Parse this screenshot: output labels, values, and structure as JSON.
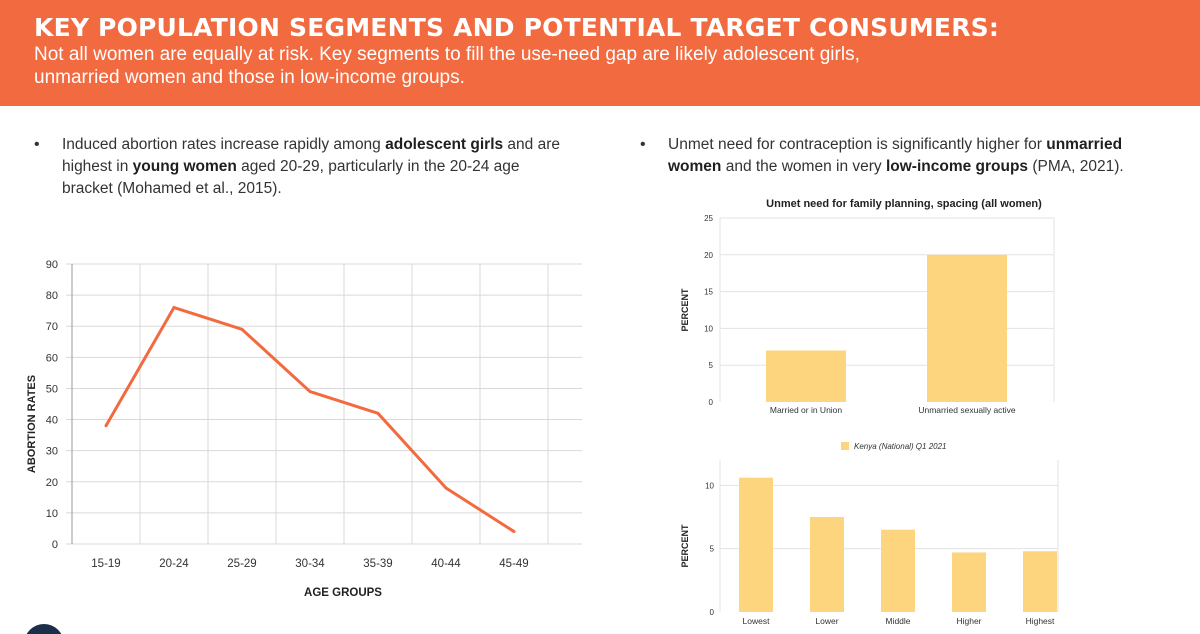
{
  "header": {
    "title": "KEY POPULATION SEGMENTS AND POTENTIAL TARGET CONSUMERS:",
    "subtitle_line1": "Not all women are equally at risk. Key segments to fill the use-need gap are likely adolescent girls,",
    "subtitle_line2": "unmarried women and those in low-income groups."
  },
  "left_bullet": {
    "t1": "Induced abortion rates increase rapidly among ",
    "b1": "adolescent girls",
    "t2": " and are highest in ",
    "b2": "young women",
    "t3": " aged 20-29, particularly in the 20-24 age bracket (Mohamed et al., 2015)."
  },
  "right_bullet": {
    "t1": "Unmet need for contraception is significantly higher for ",
    "b1": "unmarried women",
    "t2": " and the women in very ",
    "b2": "low-income groups",
    "t3": " (PMA, 2021)."
  },
  "chart_data": [
    {
      "type": "line",
      "title": "",
      "xlabel": "AGE GROUPS",
      "ylabel": "ABORTION RATES",
      "categories": [
        "15-19",
        "20-24",
        "25-29",
        "30-34",
        "35-39",
        "40-44",
        "45-49"
      ],
      "values": [
        38,
        76,
        69,
        49,
        42,
        18,
        4
      ],
      "ylim": [
        0,
        90
      ],
      "yticks": [
        0,
        10,
        20,
        30,
        40,
        50,
        60,
        70,
        80,
        90
      ],
      "grid": true,
      "color": "#f26a3f"
    },
    {
      "type": "bar",
      "title": "Unmet need for family planning, spacing (all women)",
      "xlabel": "",
      "ylabel": "PERCENT",
      "categories": [
        "Married or in Union",
        "Unmarried sexually active"
      ],
      "series": [
        {
          "name": "Kenya (National) Q1 2021",
          "values": [
            7,
            20
          ]
        }
      ],
      "ylim": [
        0,
        25
      ],
      "yticks": [
        0,
        5,
        10,
        15,
        20,
        25
      ],
      "grid": true,
      "legend": "bottom",
      "color": "#fdd57e"
    },
    {
      "type": "bar",
      "title": "",
      "xlabel": "",
      "ylabel": "PERCENT",
      "categories": [
        "Lowest",
        "Lower",
        "Middle",
        "Higher",
        "Highest"
      ],
      "values": [
        10.6,
        7.5,
        6.5,
        4.7,
        4.8
      ],
      "ylim": [
        0,
        12
      ],
      "yticks": [
        0,
        5,
        10
      ],
      "grid": true,
      "color": "#fdd57e"
    }
  ]
}
